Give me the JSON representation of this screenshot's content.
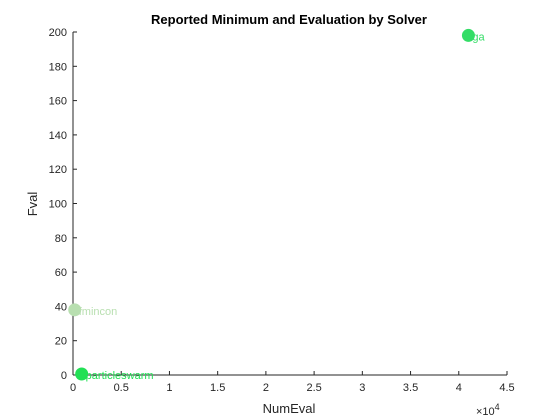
{
  "chart_data": {
    "type": "scatter",
    "title": "Reported Minimum and Evaluation by Solver",
    "xlabel": "NumEval",
    "ylabel": "Fval",
    "xlim": [
      0,
      45000
    ],
    "ylim": [
      0,
      200
    ],
    "x_ticks": [
      0,
      5000,
      10000,
      15000,
      20000,
      25000,
      30000,
      35000,
      40000,
      45000
    ],
    "x_tick_labels": [
      "0",
      "0.5",
      "1",
      "1.5",
      "2",
      "2.5",
      "3",
      "3.5",
      "4",
      "4.5"
    ],
    "x_exponent_label": "×10",
    "x_exponent_power": "4",
    "y_ticks": [
      0,
      20,
      40,
      60,
      80,
      100,
      120,
      140,
      160,
      180,
      200
    ],
    "y_tick_labels": [
      "0",
      "20",
      "40",
      "60",
      "80",
      "100",
      "120",
      "140",
      "160",
      "180",
      "200"
    ],
    "grid": false,
    "points": [
      {
        "label": "ga",
        "x": 41000,
        "y": 198,
        "color": "#33dd66"
      },
      {
        "label": "fmincon",
        "x": 180,
        "y": 38,
        "color": "#b8dfb0"
      },
      {
        "label": "particleswarm",
        "x": 900,
        "y": 0.6,
        "color": "#22e055"
      }
    ]
  }
}
